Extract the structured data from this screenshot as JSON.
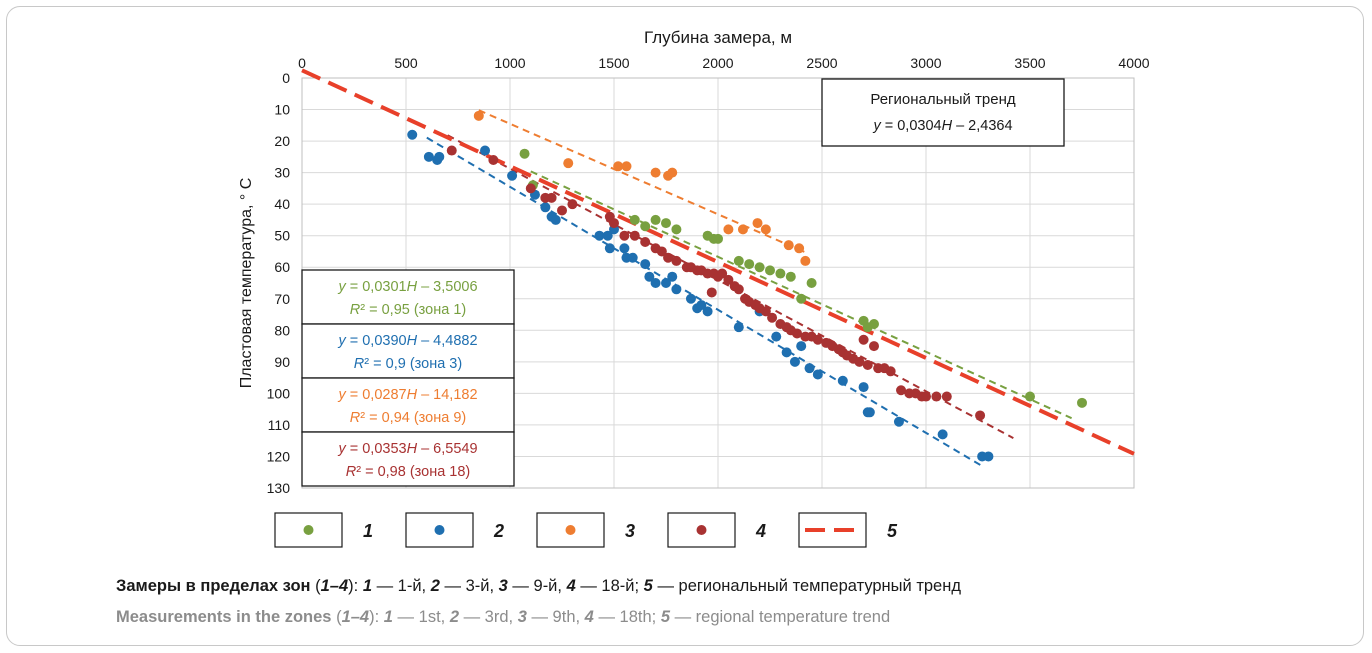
{
  "chart_data": {
    "type": "scatter",
    "xlabel": "Глубина замера, м",
    "ylabel": "Пластовая температура, ° C",
    "xlim": [
      0,
      4000
    ],
    "ylim": [
      130,
      0
    ],
    "x_ticks": [
      "0",
      "500",
      "1000",
      "1500",
      "2000",
      "2500",
      "3000",
      "3500",
      "4000"
    ],
    "y_ticks": [
      "0",
      "10",
      "20",
      "30",
      "40",
      "50",
      "60",
      "70",
      "80",
      "90",
      "100",
      "110",
      "120",
      "130"
    ],
    "grid": true,
    "legend_position": "bottom",
    "regional_trend": {
      "title": "Региональный тренд",
      "equation": "y = 0,0304H – 2,4364",
      "slope": 0.0304,
      "intercept": -2.4364,
      "x_range": [
        0,
        4000
      ],
      "color": "#e8402a"
    },
    "series": [
      {
        "name": "1",
        "color": "#78a040",
        "eq_line1": "y = 0,0301H – 3,5006",
        "eq_line2": "R² = 0,95 (зона 1)",
        "slope": 0.0301,
        "intercept": -3.5006,
        "fit_x": [
          1100,
          3700
        ],
        "points": [
          [
            1070,
            24
          ],
          [
            1110,
            34
          ],
          [
            1600,
            45
          ],
          [
            1650,
            47
          ],
          [
            1700,
            45
          ],
          [
            1750,
            46
          ],
          [
            1800,
            48
          ],
          [
            1950,
            50
          ],
          [
            1980,
            51
          ],
          [
            2000,
            51
          ],
          [
            2100,
            58
          ],
          [
            2150,
            59
          ],
          [
            2200,
            60
          ],
          [
            2250,
            61
          ],
          [
            2300,
            62
          ],
          [
            2350,
            63
          ],
          [
            2400,
            70
          ],
          [
            2450,
            65
          ],
          [
            2700,
            77
          ],
          [
            2720,
            79
          ],
          [
            2750,
            78
          ],
          [
            3500,
            101
          ],
          [
            3750,
            103
          ]
        ]
      },
      {
        "name": "2",
        "color": "#1f6fb0",
        "eq_line1": "y = 0,0390H – 4,4882",
        "eq_line2": "R² = 0,9 (зона 3)",
        "slope": 0.039,
        "intercept": -4.4882,
        "fit_x": [
          600,
          3270
        ],
        "points": [
          [
            530,
            18
          ],
          [
            610,
            25
          ],
          [
            650,
            26
          ],
          [
            660,
            25
          ],
          [
            880,
            23
          ],
          [
            1010,
            31
          ],
          [
            1120,
            37
          ],
          [
            1170,
            41
          ],
          [
            1200,
            44
          ],
          [
            1220,
            45
          ],
          [
            1430,
            50
          ],
          [
            1470,
            50
          ],
          [
            1500,
            48
          ],
          [
            1480,
            54
          ],
          [
            1550,
            54
          ],
          [
            1560,
            57
          ],
          [
            1590,
            57
          ],
          [
            1650,
            59
          ],
          [
            1670,
            63
          ],
          [
            1700,
            65
          ],
          [
            1750,
            65
          ],
          [
            1780,
            63
          ],
          [
            1800,
            67
          ],
          [
            1870,
            70
          ],
          [
            1900,
            73
          ],
          [
            1920,
            72
          ],
          [
            1950,
            74
          ],
          [
            2100,
            79
          ],
          [
            2200,
            74
          ],
          [
            2280,
            82
          ],
          [
            2330,
            87
          ],
          [
            2370,
            90
          ],
          [
            2400,
            85
          ],
          [
            2440,
            92
          ],
          [
            2480,
            94
          ],
          [
            2600,
            96
          ],
          [
            2700,
            98
          ],
          [
            2720,
            106
          ],
          [
            2730,
            106
          ],
          [
            2870,
            109
          ],
          [
            3080,
            113
          ],
          [
            3270,
            120
          ],
          [
            3300,
            120
          ]
        ]
      },
      {
        "name": "3",
        "color": "#ee7d31",
        "eq_line1": "y = 0,0287H – 14,182",
        "eq_line2": "R² = 0,94 (зона 9)",
        "slope": 0.0287,
        "intercept": -14.182,
        "fit_x": [
          850,
          2430
        ],
        "points": [
          [
            850,
            12
          ],
          [
            1280,
            27
          ],
          [
            1520,
            28
          ],
          [
            1560,
            28
          ],
          [
            1700,
            30
          ],
          [
            1760,
            31
          ],
          [
            1780,
            30
          ],
          [
            2050,
            48
          ],
          [
            2120,
            48
          ],
          [
            2190,
            46
          ],
          [
            2230,
            48
          ],
          [
            2340,
            53
          ],
          [
            2390,
            54
          ],
          [
            2420,
            58
          ]
        ]
      },
      {
        "name": "4",
        "color": "#a83232",
        "eq_line1": "y = 0,0353H – 6,5549",
        "eq_line2": "R² = 0,98 (зона 18)",
        "slope": 0.0353,
        "intercept": -6.5549,
        "fit_x": [
          700,
          3420
        ],
        "points": [
          [
            720,
            23
          ],
          [
            920,
            26
          ],
          [
            1100,
            35
          ],
          [
            1170,
            38
          ],
          [
            1200,
            38
          ],
          [
            1250,
            42
          ],
          [
            1300,
            40
          ],
          [
            1480,
            44
          ],
          [
            1500,
            46
          ],
          [
            1550,
            50
          ],
          [
            1600,
            50
          ],
          [
            1650,
            52
          ],
          [
            1700,
            54
          ],
          [
            1730,
            55
          ],
          [
            1760,
            57
          ],
          [
            1800,
            58
          ],
          [
            1850,
            60
          ],
          [
            1870,
            60
          ],
          [
            1900,
            61
          ],
          [
            1920,
            61
          ],
          [
            1950,
            62
          ],
          [
            1980,
            62
          ],
          [
            2000,
            63
          ],
          [
            2020,
            62
          ],
          [
            2050,
            64
          ],
          [
            2080,
            66
          ],
          [
            2100,
            67
          ],
          [
            2130,
            70
          ],
          [
            2150,
            71
          ],
          [
            2180,
            72
          ],
          [
            2200,
            73
          ],
          [
            2230,
            74
          ],
          [
            2260,
            76
          ],
          [
            2300,
            78
          ],
          [
            2330,
            79
          ],
          [
            2350,
            80
          ],
          [
            2380,
            81
          ],
          [
            2420,
            82
          ],
          [
            2450,
            82
          ],
          [
            2480,
            83
          ],
          [
            2520,
            84
          ],
          [
            2550,
            85
          ],
          [
            2580,
            86
          ],
          [
            2600,
            87
          ],
          [
            2620,
            88
          ],
          [
            2650,
            89
          ],
          [
            2680,
            90
          ],
          [
            2700,
            83
          ],
          [
            2720,
            91
          ],
          [
            2750,
            85
          ],
          [
            2770,
            92
          ],
          [
            2800,
            92
          ],
          [
            2830,
            93
          ],
          [
            2880,
            99
          ],
          [
            2920,
            100
          ],
          [
            2950,
            100
          ],
          [
            2980,
            101
          ],
          [
            3000,
            101
          ],
          [
            3050,
            101
          ],
          [
            3100,
            101
          ],
          [
            3260,
            107
          ],
          [
            1970,
            68
          ]
        ]
      }
    ]
  },
  "legend": {
    "items": [
      {
        "label": "1",
        "color": "#78a040",
        "kind": "dot"
      },
      {
        "label": "2",
        "color": "#1f6fb0",
        "kind": "dot"
      },
      {
        "label": "3",
        "color": "#ee7d31",
        "kind": "dot"
      },
      {
        "label": "4",
        "color": "#a83232",
        "kind": "dot"
      },
      {
        "label": "5",
        "color": "#e8402a",
        "kind": "dash"
      }
    ]
  },
  "caption": {
    "ru_lead": "Замеры в пределах зон",
    "ru_range_open": " (",
    "ru_range": "1–4",
    "ru_range_close": "): ",
    "ru_n1": "1",
    "ru_t1": " — 1-й, ",
    "ru_n2": "2",
    "ru_t2": " — 3-й, ",
    "ru_n3": "3",
    "ru_t3": " — 9-й, ",
    "ru_n4": "4",
    "ru_t4": " — 18-й; ",
    "ru_n5": "5",
    "ru_t5": " — региональный температурный тренд",
    "en_lead": "Measurements in the zones",
    "en_range_open": " (",
    "en_range": "1–4",
    "en_range_close": "): ",
    "en_n1": "1",
    "en_t1": " — 1st, ",
    "en_n2": "2",
    "en_t2": " — 3rd, ",
    "en_n3": "3",
    "en_t3": " — 9th, ",
    "en_n4": "4",
    "en_t4": " — 18th; ",
    "en_n5": "5",
    "en_t5": " — regional temperature trend"
  }
}
